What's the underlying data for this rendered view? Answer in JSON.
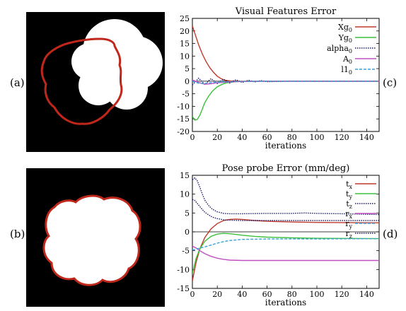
{
  "labels": {
    "a": "(a)",
    "b": "(b)",
    "c": "(c)",
    "d": "(d)"
  },
  "chart_data": [
    {
      "type": "line",
      "title": "Visual Features Error",
      "xlabel": "iterations",
      "ylabel": "",
      "xlim": [
        0,
        150
      ],
      "ylim": [
        -20,
        25
      ],
      "xticks": [
        0,
        20,
        40,
        60,
        80,
        100,
        120,
        140
      ],
      "yticks": [
        -20,
        -15,
        -10,
        -5,
        0,
        5,
        10,
        15,
        20,
        25
      ],
      "legend_position": "top-right",
      "zero_line": true,
      "series": [
        {
          "name": "Xg",
          "sub": "0",
          "color": "#c0392b",
          "dash": "",
          "x": [
            0,
            2,
            5,
            8,
            11,
            14,
            17,
            20,
            23,
            26,
            30,
            40,
            60,
            100,
            150
          ],
          "y": [
            22,
            19,
            14.5,
            10.8,
            7.8,
            5.4,
            3.5,
            2.0,
            1.0,
            0.4,
            0.1,
            0,
            0,
            0,
            0
          ]
        },
        {
          "name": "Yg",
          "sub": "0",
          "color": "#3cc13c",
          "dash": "",
          "x": [
            0,
            2,
            4,
            6,
            8,
            10,
            13,
            16,
            20,
            24,
            28,
            35,
            45,
            60,
            100,
            150
          ],
          "y": [
            -14,
            -15.5,
            -15.2,
            -13.5,
            -11,
            -8.5,
            -6,
            -4,
            -2.2,
            -1.2,
            -0.6,
            -0.2,
            -0.05,
            0,
            0,
            0
          ]
        },
        {
          "name": "alpha",
          "sub": "0",
          "color": "#1a1a6e",
          "dash": "1.5,1.5",
          "x": [
            0,
            5,
            10,
            15,
            20,
            25,
            30,
            35,
            40,
            45,
            50,
            55,
            60,
            80,
            100,
            150
          ],
          "y": [
            -1.5,
            1.2,
            -1.3,
            1.0,
            -0.9,
            0.8,
            -0.7,
            0.6,
            -0.5,
            0.4,
            -0.3,
            0.25,
            -0.2,
            0.05,
            0,
            0
          ]
        },
        {
          "name": "A",
          "sub": "0",
          "color": "#c050c0",
          "dash": "",
          "x": [
            0,
            5,
            10,
            15,
            20,
            30,
            40,
            60,
            100,
            150
          ],
          "y": [
            0.5,
            -0.5,
            -1.2,
            -1.0,
            -0.6,
            -0.3,
            -0.1,
            0,
            0,
            0
          ]
        },
        {
          "name": "l1",
          "sub": "0",
          "color": "#3aa0d8",
          "dash": "4,2",
          "x": [
            0,
            5,
            10,
            15,
            20,
            30,
            40,
            60,
            100,
            150
          ],
          "y": [
            0,
            -0.8,
            -0.9,
            -0.6,
            -0.4,
            -0.2,
            -0.1,
            0,
            0,
            0
          ]
        }
      ]
    },
    {
      "type": "line",
      "title": "Pose probe Error (mm/deg)",
      "xlabel": "iterations",
      "ylabel": "",
      "xlim": [
        0,
        150
      ],
      "ylim": [
        -15,
        15
      ],
      "xticks": [
        0,
        20,
        40,
        60,
        80,
        100,
        120,
        140
      ],
      "yticks": [
        -15,
        -10,
        -5,
        0,
        5,
        10,
        15
      ],
      "legend_position": "top-right",
      "zero_line": true,
      "series": [
        {
          "name": "t",
          "sub": "x",
          "color": "#c0392b",
          "dash": "",
          "x": [
            0,
            3,
            6,
            10,
            15,
            20,
            25,
            30,
            35,
            40,
            50,
            60,
            80,
            100,
            150
          ],
          "y": [
            -13,
            -8,
            -4.5,
            -1.5,
            0.8,
            2.2,
            3.0,
            3.3,
            3.4,
            3.3,
            3.0,
            2.8,
            2.6,
            2.5,
            2.4
          ]
        },
        {
          "name": "t",
          "sub": "y",
          "color": "#3cc13c",
          "dash": "",
          "x": [
            0,
            3,
            6,
            10,
            15,
            20,
            25,
            30,
            35,
            40,
            50,
            60,
            80,
            100,
            150
          ],
          "y": [
            -11,
            -7,
            -4.5,
            -2.5,
            -1.2,
            -0.6,
            -0.4,
            -0.5,
            -0.7,
            -0.9,
            -1.2,
            -1.4,
            -1.6,
            -1.7,
            -1.8
          ]
        },
        {
          "name": "t",
          "sub": "z",
          "color": "#1a1a6e",
          "dash": "1.5,1.5",
          "x": [
            0,
            2,
            4,
            6,
            8,
            10,
            13,
            16,
            20,
            25,
            30,
            40,
            60,
            80,
            90,
            100,
            120,
            150
          ],
          "y": [
            13.8,
            14.3,
            13.5,
            11.8,
            10.0,
            8.4,
            7.0,
            6.0,
            5.3,
            4.9,
            4.8,
            4.8,
            4.9,
            4.9,
            5.0,
            4.9,
            4.8,
            4.6
          ]
        },
        {
          "name": "r",
          "sub": "x",
          "color": "#c050c0",
          "dash": "",
          "x": [
            0,
            3,
            6,
            10,
            15,
            20,
            25,
            30,
            40,
            60,
            80,
            100,
            150
          ],
          "y": [
            -3.8,
            -4.3,
            -5.0,
            -5.8,
            -6.5,
            -7.0,
            -7.3,
            -7.5,
            -7.6,
            -7.6,
            -7.6,
            -7.6,
            -7.6
          ]
        },
        {
          "name": "r",
          "sub": "y",
          "color": "#3aa0d8",
          "dash": "4,2",
          "x": [
            0,
            3,
            6,
            10,
            15,
            20,
            25,
            30,
            40,
            60,
            80,
            100,
            150
          ],
          "y": [
            -4.8,
            -4.6,
            -4.3,
            -4.0,
            -3.5,
            -3.0,
            -2.6,
            -2.3,
            -2.0,
            -1.9,
            -1.9,
            -1.9,
            -1.8
          ]
        },
        {
          "name": "r",
          "sub": "z",
          "color": "#1a1a6e",
          "dash": "1.5,1.5",
          "x": [
            0,
            2,
            4,
            6,
            8,
            10,
            13,
            16,
            20,
            25,
            30,
            40,
            60,
            80,
            100,
            150
          ],
          "y": [
            8.6,
            8.3,
            7.5,
            6.7,
            5.9,
            5.2,
            4.5,
            3.9,
            3.5,
            3.2,
            3.1,
            3.0,
            3.0,
            3.0,
            3.0,
            3.0
          ]
        }
      ]
    }
  ]
}
